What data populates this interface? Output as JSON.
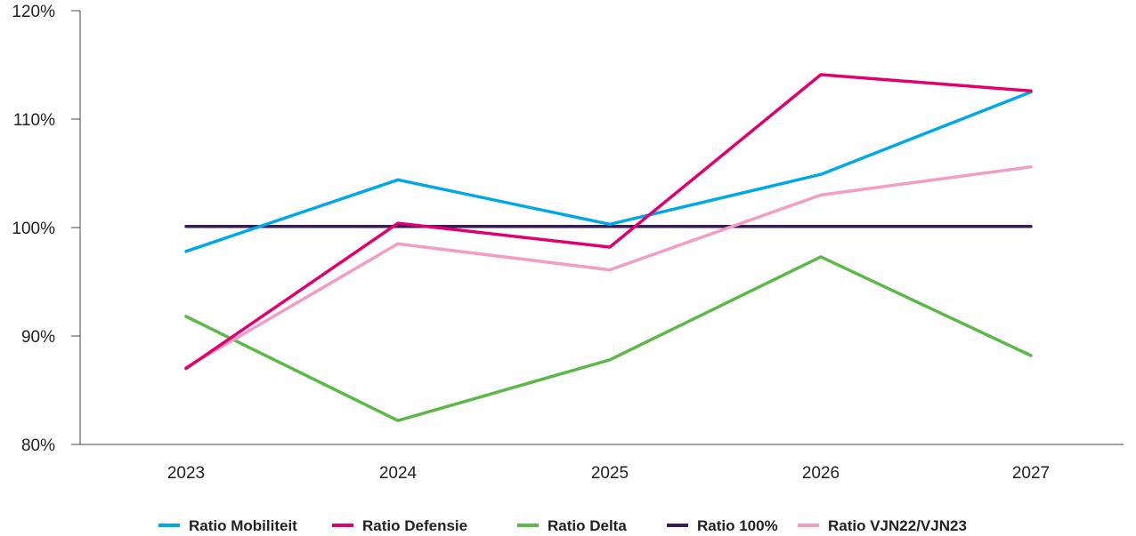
{
  "chart_data": {
    "type": "line",
    "categories": [
      "2023",
      "2024",
      "2025",
      "2026",
      "2027"
    ],
    "y_ticks": [
      "80%",
      "90%",
      "100%",
      "110%",
      "120%"
    ],
    "ylim": [
      80,
      120
    ],
    "grid": false,
    "legend_placement": "bottom",
    "series": [
      {
        "name": "Ratio Mobiliteit",
        "color": "#00a9e6",
        "values": [
          97.8,
          104.4,
          100.3,
          104.9,
          112.5
        ]
      },
      {
        "name": "Ratio Defensie",
        "color": "#e0006e",
        "values": [
          87.0,
          100.4,
          98.2,
          114.1,
          112.6
        ]
      },
      {
        "name": "Ratio Delta",
        "color": "#5cb848",
        "values": [
          91.8,
          82.2,
          87.8,
          97.3,
          88.2
        ]
      },
      {
        "name": "Ratio 100%",
        "color": "#3a1a5e",
        "values": [
          100.1,
          100.1,
          100.1,
          100.1,
          100.1
        ]
      },
      {
        "name": "Ratio VJN22/VJN23",
        "color": "#f19dc4",
        "values": [
          87.1,
          98.5,
          96.1,
          103.0,
          105.6
        ]
      }
    ]
  }
}
